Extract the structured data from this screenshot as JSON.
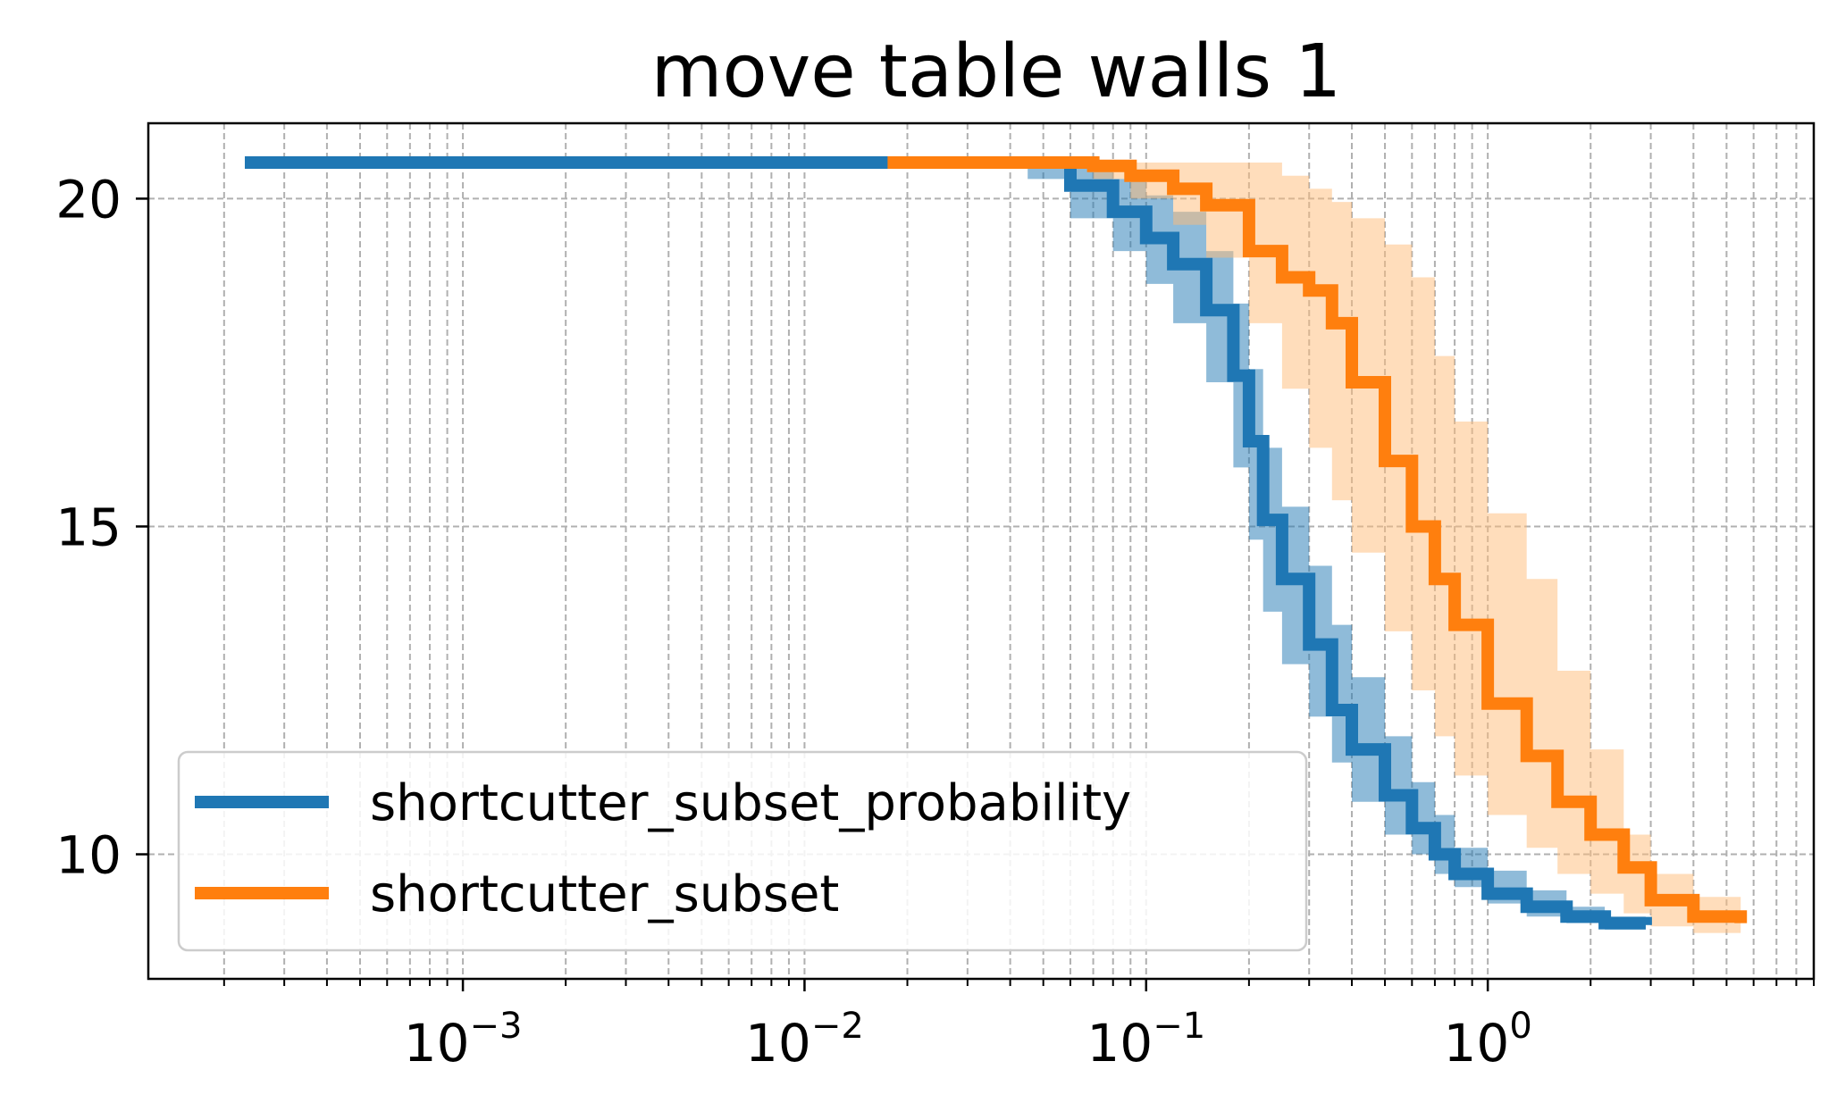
{
  "chart_data": {
    "type": "line",
    "title": "move table walls 1",
    "xlabel": "",
    "ylabel": "",
    "xscale": "log",
    "xlim": [
      0.00012,
      9.0
    ],
    "ylim": [
      8.1,
      21.15
    ],
    "grid": true,
    "grid_minor": true,
    "legend": "lower-left",
    "x_ticks": [
      {
        "value": 0.001,
        "base": "10",
        "exp": "−3"
      },
      {
        "value": 0.01,
        "base": "10",
        "exp": "−2"
      },
      {
        "value": 0.1,
        "base": "10",
        "exp": "−1"
      },
      {
        "value": 1,
        "base": "10",
        "exp": "0"
      }
    ],
    "y_ticks": [
      {
        "value": 20,
        "label": "20"
      },
      {
        "value": 15,
        "label": "15"
      },
      {
        "value": 10,
        "label": "10"
      }
    ],
    "series": [
      {
        "name": "shortcutter_subset_probability",
        "color": "#1f77b4",
        "band_color": "#1f77b4",
        "x": [
          0.00023,
          0.045,
          0.06,
          0.08,
          0.1,
          0.12,
          0.15,
          0.18,
          0.2,
          0.22,
          0.25,
          0.3,
          0.35,
          0.4,
          0.5,
          0.6,
          0.7,
          0.8,
          1.0,
          1.3,
          1.7,
          2.2,
          2.9
        ],
        "y": [
          20.55,
          20.55,
          20.2,
          19.8,
          19.4,
          19.0,
          18.3,
          17.3,
          16.3,
          15.1,
          14.2,
          13.2,
          12.2,
          11.6,
          10.9,
          10.4,
          10.0,
          9.7,
          9.4,
          9.2,
          9.05,
          8.95,
          8.92
        ],
        "lower": [
          20.55,
          20.3,
          19.7,
          19.2,
          18.7,
          18.1,
          17.2,
          15.9,
          14.8,
          13.7,
          12.9,
          12.1,
          11.4,
          10.8,
          10.3,
          10.0,
          9.7,
          9.5,
          9.25,
          9.05,
          8.95,
          8.85,
          8.82
        ],
        "upper": [
          20.55,
          20.55,
          20.5,
          20.3,
          20.05,
          19.8,
          19.2,
          18.4,
          17.4,
          16.2,
          15.3,
          14.4,
          13.5,
          12.7,
          11.8,
          11.1,
          10.6,
          10.1,
          9.75,
          9.45,
          9.2,
          9.05,
          9.0
        ]
      },
      {
        "name": "shortcutter_subset",
        "color": "#ff7f0e",
        "band_color": "#ffbb78",
        "x": [
          0.0175,
          0.05,
          0.07,
          0.09,
          0.12,
          0.15,
          0.2,
          0.25,
          0.3,
          0.35,
          0.4,
          0.5,
          0.6,
          0.7,
          0.8,
          1.0,
          1.3,
          1.6,
          2.0,
          2.5,
          3.0,
          4.0,
          5.5
        ],
        "y": [
          20.55,
          20.55,
          20.5,
          20.35,
          20.15,
          19.9,
          19.2,
          18.8,
          18.6,
          18.1,
          17.2,
          16.0,
          15.0,
          14.2,
          13.5,
          12.3,
          11.5,
          10.8,
          10.3,
          9.8,
          9.3,
          9.05,
          8.95
        ],
        "lower": [
          20.55,
          20.5,
          20.3,
          20.0,
          19.6,
          19.1,
          18.1,
          17.1,
          16.2,
          15.4,
          14.6,
          13.4,
          12.5,
          11.8,
          11.2,
          10.6,
          10.1,
          9.7,
          9.4,
          9.1,
          8.9,
          8.8,
          8.75
        ],
        "upper": [
          20.55,
          20.55,
          20.55,
          20.55,
          20.55,
          20.55,
          20.55,
          20.35,
          20.15,
          19.95,
          19.7,
          19.3,
          18.8,
          17.6,
          16.6,
          15.2,
          14.2,
          12.8,
          11.6,
          10.3,
          9.7,
          9.35,
          9.2
        ]
      }
    ]
  }
}
